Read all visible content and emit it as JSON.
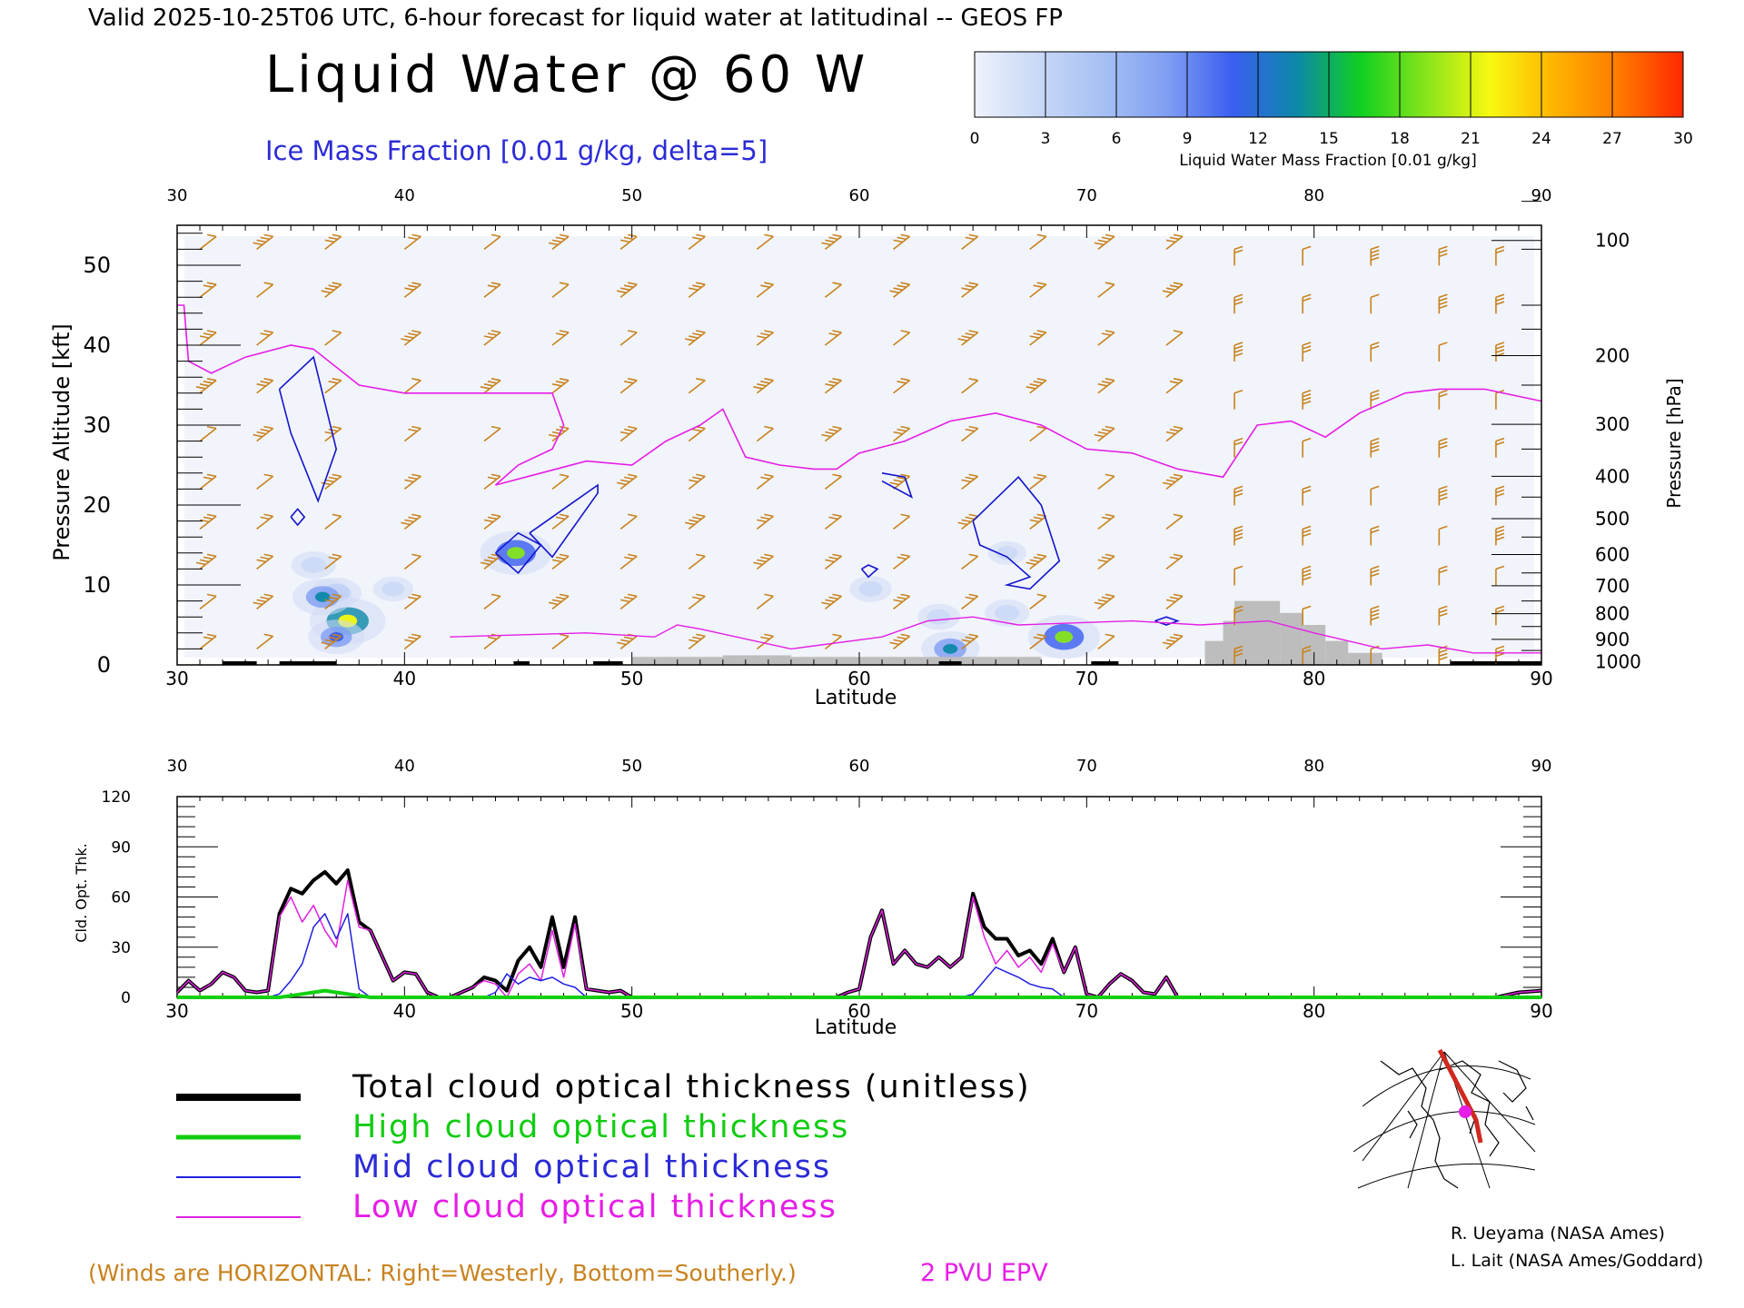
{
  "header": {
    "valid_line": "Valid 2025-10-25T06 UTC, 6-hour forecast for liquid water at latitudinal -- GEOS FP",
    "main_title": "Liquid Water @ 60 W",
    "subtitle": "Ice Mass Fraction [0.01 g/kg, delta=5]"
  },
  "colorbar": {
    "label": "Liquid Water Mass Fraction [0.01 g/kg]",
    "ticks": [
      "0",
      "3",
      "6",
      "9",
      "12",
      "15",
      "18",
      "21",
      "24",
      "27",
      "30"
    ],
    "colors": [
      "#eef2fc",
      "#c8d8f6",
      "#a6c0f4",
      "#7f9ef2",
      "#3a5ef0",
      "#0d88a8",
      "#10d020",
      "#86e41c",
      "#f8f810",
      "#ffb400",
      "#ff7a00",
      "#ff2800"
    ]
  },
  "chart_data": [
    {
      "type": "heatmap",
      "name_hint": "cross-section",
      "xlabel": "Latitude",
      "ylabel": "Pressure Altitude [kft]",
      "ylabel_right": "Pressure [hPa]",
      "xlim": [
        30,
        90
      ],
      "ylim": [
        0,
        55
      ],
      "x_ticks": [
        30,
        40,
        50,
        60,
        70,
        80,
        90
      ],
      "y_ticks": [
        0,
        10,
        20,
        30,
        40,
        50
      ],
      "pressure_ticks": [
        {
          "hpa": "100",
          "kft": 53.1
        },
        {
          "hpa": "200",
          "kft": 38.7
        },
        {
          "hpa": "300",
          "kft": 30.1
        },
        {
          "hpa": "400",
          "kft": 23.6
        },
        {
          "hpa": "500",
          "kft": 18.3
        },
        {
          "hpa": "600",
          "kft": 13.8
        },
        {
          "hpa": "700",
          "kft": 9.9
        },
        {
          "hpa": "800",
          "kft": 6.4
        },
        {
          "hpa": "900",
          "kft": 3.2
        },
        {
          "hpa": "1000",
          "kft": 0.4
        }
      ],
      "liquid_water_blobs": [
        {
          "lat": 37.0,
          "kft": 9.0,
          "value": 9
        },
        {
          "lat": 37.5,
          "kft": 5.5,
          "value": 22
        },
        {
          "lat": 37.0,
          "kft": 3.5,
          "value": 12
        },
        {
          "lat": 36.4,
          "kft": 8.5,
          "value": 14
        },
        {
          "lat": 36.0,
          "kft": 12.5,
          "value": 6
        },
        {
          "lat": 44.9,
          "kft": 14.0,
          "value": 20
        },
        {
          "lat": 64.0,
          "kft": 2.0,
          "value": 13
        },
        {
          "lat": 69.0,
          "kft": 3.5,
          "value": 20
        },
        {
          "lat": 60.5,
          "kft": 9.5,
          "value": 5
        },
        {
          "lat": 66.5,
          "kft": 6.5,
          "value": 6
        },
        {
          "lat": 63.5,
          "kft": 6.0,
          "value": 5
        },
        {
          "lat": 66.5,
          "kft": 14.0,
          "value": 3
        },
        {
          "lat": 39.5,
          "kft": 9.5,
          "value": 4
        }
      ],
      "ice_contours": [
        {
          "points": [
            [
              34.5,
              34.5
            ],
            [
              36.0,
              38.5
            ],
            [
              37.0,
              27.0
            ],
            [
              36.2,
              20.5
            ],
            [
              35.0,
              29.0
            ],
            [
              34.5,
              34.5
            ]
          ]
        },
        {
          "points": [
            [
              35.0,
              18.5
            ],
            [
              35.3,
              17.5
            ],
            [
              35.6,
              18.5
            ],
            [
              35.3,
              19.5
            ],
            [
              35.0,
              18.5
            ]
          ]
        },
        {
          "points": [
            [
              44.0,
              14.0
            ],
            [
              45.0,
              16.5
            ],
            [
              46.0,
              15.0
            ],
            [
              45.0,
              11.5
            ],
            [
              44.0,
              14.0
            ]
          ]
        },
        {
          "points": [
            [
              45.5,
              16.5
            ],
            [
              48.5,
              22.5
            ],
            [
              48.5,
              21.5
            ],
            [
              46.5,
              13.5
            ],
            [
              45.5,
              16.5
            ]
          ]
        },
        {
          "points": [
            [
              60.1,
              12.0
            ],
            [
              60.4,
              12.5
            ],
            [
              60.8,
              12.0
            ],
            [
              60.4,
              11.0
            ],
            [
              60.1,
              12.0
            ]
          ]
        },
        {
          "points": [
            [
              65.0,
              18.0
            ],
            [
              67.0,
              23.5
            ],
            [
              68.0,
              20.0
            ],
            [
              68.8,
              13.0
            ],
            [
              67.5,
              9.5
            ],
            [
              66.5,
              10.0
            ],
            [
              67.5,
              11.0
            ],
            [
              66.5,
              13.5
            ],
            [
              65.3,
              15.0
            ],
            [
              65.0,
              18.0
            ]
          ]
        },
        {
          "points": [
            [
              73.0,
              5.5
            ],
            [
              73.5,
              6.0
            ],
            [
              74.0,
              5.5
            ],
            [
              73.5,
              5.0
            ],
            [
              73.0,
              5.5
            ]
          ]
        },
        {
          "points": [
            [
              61.0,
              24.0
            ],
            [
              62.0,
              23.5
            ],
            [
              62.3,
              21.0
            ],
            [
              61.0,
              23.0
            ]
          ]
        }
      ],
      "epv_2pvu_line": {
        "points": [
          [
            30.0,
            45.0
          ],
          [
            30.3,
            45.0
          ],
          [
            30.5,
            38.0
          ],
          [
            31.5,
            36.5
          ],
          [
            33.0,
            38.5
          ],
          [
            35.0,
            40.0
          ],
          [
            36.0,
            39.5
          ],
          [
            38.0,
            35.0
          ],
          [
            40.0,
            34.0
          ],
          [
            43.0,
            34.0
          ],
          [
            46.5,
            34.0
          ],
          [
            47.0,
            30.0
          ],
          [
            46.5,
            27.0
          ],
          [
            45.0,
            25.0
          ],
          [
            44.0,
            22.5
          ],
          [
            46.0,
            24.0
          ],
          [
            48.0,
            25.5
          ],
          [
            50.0,
            25.0
          ],
          [
            51.5,
            28.0
          ],
          [
            53.0,
            30.0
          ],
          [
            54.0,
            32.0
          ],
          [
            55.0,
            26.0
          ],
          [
            56.5,
            25.0
          ],
          [
            58.0,
            24.5
          ],
          [
            59.0,
            24.5
          ],
          [
            60.0,
            26.5
          ],
          [
            62.0,
            28.0
          ],
          [
            64.0,
            30.5
          ],
          [
            66.0,
            31.5
          ],
          [
            68.0,
            30.0
          ],
          [
            70.0,
            27.0
          ],
          [
            72.0,
            26.5
          ],
          [
            74.0,
            24.5
          ],
          [
            76.0,
            23.5
          ],
          [
            77.5,
            30.0
          ],
          [
            79.0,
            30.5
          ],
          [
            80.5,
            28.5
          ],
          [
            82.0,
            31.5
          ],
          [
            84.0,
            34.0
          ],
          [
            85.5,
            34.5
          ],
          [
            87.5,
            34.5
          ],
          [
            90.0,
            33.0
          ]
        ]
      },
      "terrain": [
        {
          "lat": [
            50.0,
            54.0
          ],
          "kft": 1.0
        },
        {
          "lat": [
            54.0,
            57.0
          ],
          "kft": 1.2
        },
        {
          "lat": [
            57.0,
            68.0
          ],
          "kft": 1.0
        },
        {
          "lat": [
            75.2,
            76.0
          ],
          "kft": 3.0
        },
        {
          "lat": [
            76.0,
            76.5
          ],
          "kft": 5.5
        },
        {
          "lat": [
            76.5,
            78.5
          ],
          "kft": 8.0
        },
        {
          "lat": [
            78.5,
            79.5
          ],
          "kft": 6.5
        },
        {
          "lat": [
            79.5,
            80.5
          ],
          "kft": 5.0
        },
        {
          "lat": [
            80.5,
            81.5
          ],
          "kft": 3.0
        },
        {
          "lat": [
            81.5,
            83.0
          ],
          "kft": 1.5
        }
      ],
      "wind_barb_columns": [
        31.0,
        33.5,
        36.5,
        40.0,
        43.5,
        46.5,
        49.5,
        52.5,
        55.5,
        58.5,
        61.5,
        64.5,
        67.5,
        70.5,
        73.5,
        76.5,
        79.5,
        82.5,
        85.5,
        88.0
      ],
      "wind_barb_color": "#c8821e"
    },
    {
      "type": "line",
      "name_hint": "optical-thickness",
      "xlabel": "Latitude",
      "ylabel": "Cld. Opt. Thk.",
      "xlim": [
        30,
        90
      ],
      "ylim": [
        0,
        120
      ],
      "x_ticks": [
        30,
        40,
        50,
        60,
        70,
        80,
        90
      ],
      "y_ticks": [
        0,
        30,
        60,
        90,
        120
      ],
      "x": [
        30.0,
        30.5,
        31.0,
        31.5,
        32.0,
        32.5,
        33.0,
        33.5,
        34.0,
        34.5,
        35.0,
        35.5,
        36.0,
        36.5,
        37.0,
        37.5,
        38.0,
        38.5,
        39.0,
        39.5,
        40.0,
        40.5,
        41.0,
        41.5,
        42.0,
        43.0,
        43.5,
        44.0,
        44.5,
        45.0,
        45.5,
        46.0,
        46.5,
        47.0,
        47.5,
        48.0,
        49.0,
        49.5,
        50.0,
        52.0,
        55.0,
        58.0,
        59.0,
        59.5,
        60.0,
        60.5,
        61.0,
        61.5,
        62.0,
        62.5,
        63.0,
        63.5,
        64.0,
        64.5,
        65.0,
        65.5,
        66.0,
        66.5,
        67.0,
        67.5,
        68.0,
        68.5,
        69.0,
        69.5,
        70.0,
        70.5,
        71.0,
        71.5,
        72.0,
        72.5,
        73.0,
        73.5,
        74.0,
        80.0,
        85.0,
        88.0,
        89.0,
        90.0
      ],
      "series": [
        {
          "name": "Total cloud optical thickness (unitless)",
          "color": "#000000",
          "width": 4,
          "values": [
            3,
            10,
            4,
            8,
            15,
            12,
            4,
            3,
            4,
            50,
            65,
            62,
            70,
            75,
            68,
            76,
            45,
            40,
            25,
            10,
            15,
            14,
            3,
            0,
            0,
            6,
            12,
            10,
            4,
            22,
            30,
            18,
            48,
            18,
            48,
            5,
            3,
            4,
            0,
            0,
            0,
            0,
            0,
            3,
            5,
            36,
            52,
            20,
            28,
            20,
            18,
            24,
            18,
            24,
            62,
            42,
            35,
            35,
            25,
            28,
            20,
            35,
            15,
            30,
            2,
            0,
            8,
            14,
            10,
            3,
            2,
            12,
            0,
            0,
            0,
            0,
            3,
            4
          ]
        },
        {
          "name": "High cloud optical thickness",
          "color": "#10d010",
          "width": 4,
          "values": [
            0,
            0,
            0,
            0,
            0,
            0,
            0,
            0,
            0,
            0,
            1,
            2,
            3,
            4,
            3,
            2,
            1,
            0,
            0,
            0,
            0,
            0,
            0,
            0,
            0,
            0,
            0,
            0,
            0,
            0,
            0,
            0,
            0,
            0,
            0,
            0,
            0,
            0,
            0,
            0,
            0,
            0,
            0,
            0,
            0,
            0,
            0,
            0,
            0,
            0,
            0,
            0,
            0,
            0,
            0,
            0,
            0,
            0,
            0,
            0,
            0,
            0,
            0,
            0,
            0,
            0,
            0,
            0,
            0,
            0,
            0,
            0,
            0,
            0,
            0,
            0,
            0,
            0
          ]
        },
        {
          "name": "Mid cloud optical thickness",
          "color": "#2020e0",
          "width": 1.5,
          "values": [
            0,
            0,
            0,
            0,
            0,
            0,
            0,
            0,
            0,
            2,
            10,
            20,
            42,
            50,
            35,
            50,
            5,
            0,
            0,
            0,
            0,
            0,
            0,
            0,
            0,
            0,
            0,
            3,
            14,
            8,
            12,
            10,
            12,
            8,
            6,
            0,
            0,
            0,
            0,
            0,
            0,
            0,
            0,
            0,
            0,
            0,
            0,
            0,
            0,
            0,
            0,
            0,
            0,
            0,
            2,
            10,
            18,
            15,
            12,
            8,
            6,
            5,
            0,
            0,
            0,
            0,
            0,
            0,
            0,
            0,
            0,
            0,
            0,
            0,
            0,
            0,
            0,
            0
          ]
        },
        {
          "name": "Low cloud optical thickness",
          "color": "#e020e0",
          "width": 1.5,
          "values": [
            3,
            10,
            4,
            8,
            15,
            12,
            4,
            3,
            4,
            48,
            60,
            45,
            55,
            40,
            30,
            70,
            42,
            40,
            25,
            10,
            15,
            14,
            3,
            0,
            0,
            6,
            10,
            8,
            0,
            14,
            20,
            10,
            40,
            12,
            44,
            5,
            3,
            4,
            0,
            0,
            0,
            0,
            0,
            3,
            5,
            36,
            52,
            20,
            28,
            20,
            18,
            24,
            18,
            24,
            60,
            36,
            20,
            28,
            18,
            24,
            15,
            32,
            15,
            30,
            2,
            0,
            8,
            14,
            10,
            3,
            2,
            12,
            0,
            0,
            0,
            0,
            3,
            4
          ]
        }
      ]
    }
  ],
  "legend": {
    "total": "Total cloud optical thickness (unitless)",
    "high": "High cloud optical thickness",
    "mid": "Mid cloud optical thickness",
    "low": "Low cloud optical thickness"
  },
  "footer": {
    "winds_note": "(Winds are HORIZONTAL: Right=Westerly, Bottom=Southerly.)",
    "epv_label": "2 PVU EPV",
    "credit1": "R. Ueyama (NASA Ames)",
    "credit2": "L. Lait (NASA Ames/Goddard)"
  },
  "colors": {
    "magenta": "#e61ee6",
    "orange": "#c8821e",
    "blue_title": "#2b2bd6",
    "green_legend": "#11cc11",
    "terrain": "#bdbdbd",
    "track": "#d0281e"
  }
}
